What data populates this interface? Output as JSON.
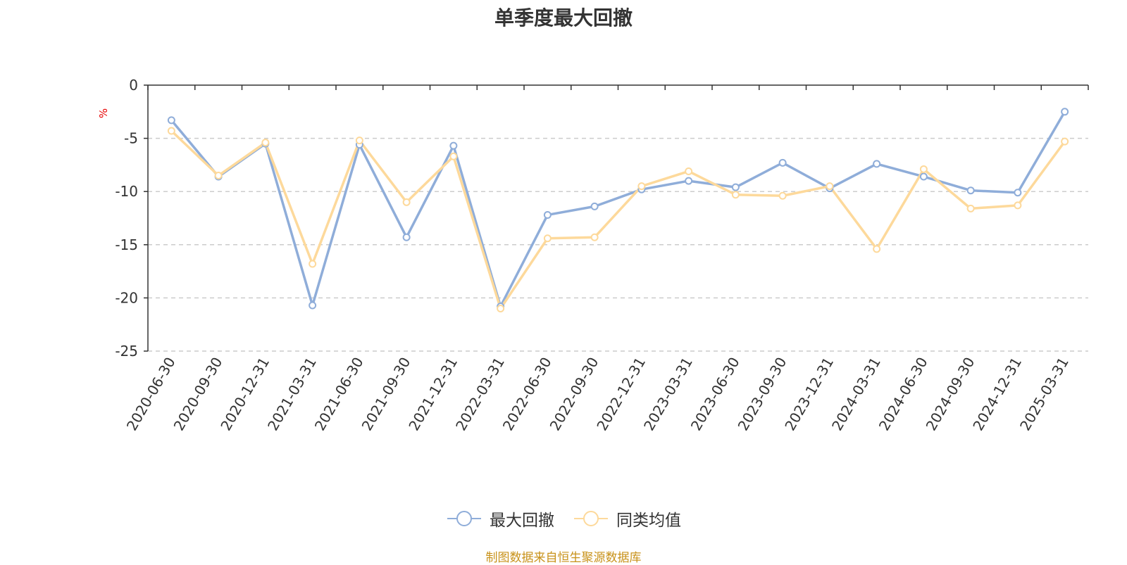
{
  "chart_data": {
    "type": "line",
    "title": "单季度最大回撤",
    "ylabel": "%",
    "xlabel": "",
    "ylim": [
      -25,
      0
    ],
    "yticks": [
      0,
      -5,
      -10,
      -15,
      -20,
      -25
    ],
    "grid": true,
    "legend_position": "bottom",
    "categories": [
      "2020-06-30",
      "2020-09-30",
      "2020-12-31",
      "2021-03-31",
      "2021-06-30",
      "2021-09-30",
      "2021-12-31",
      "2022-03-31",
      "2022-06-30",
      "2022-09-30",
      "2022-12-31",
      "2023-03-31",
      "2023-06-30",
      "2023-09-30",
      "2023-12-31",
      "2024-03-31",
      "2024-06-30",
      "2024-09-30",
      "2024-12-31",
      "2025-03-31"
    ],
    "series": [
      {
        "name": "最大回撤",
        "color": "#8fadd9",
        "values": [
          -3.3,
          -8.6,
          -5.5,
          -20.7,
          -5.6,
          -14.3,
          -5.7,
          -20.8,
          -12.2,
          -11.4,
          -9.8,
          -9.0,
          -9.6,
          -7.3,
          -9.7,
          -7.4,
          -8.6,
          -9.9,
          -10.1,
          -2.5
        ]
      },
      {
        "name": "同类均值",
        "color": "#fdd99b",
        "values": [
          -4.3,
          -8.5,
          -5.4,
          -16.8,
          -5.2,
          -11.0,
          -6.7,
          -21.0,
          -14.4,
          -14.3,
          -9.5,
          -8.1,
          -10.3,
          -10.4,
          -9.5,
          -15.4,
          -7.9,
          -11.6,
          -11.3,
          -5.3
        ]
      }
    ]
  },
  "source_text": "制图数据来自恒生聚源数据库"
}
